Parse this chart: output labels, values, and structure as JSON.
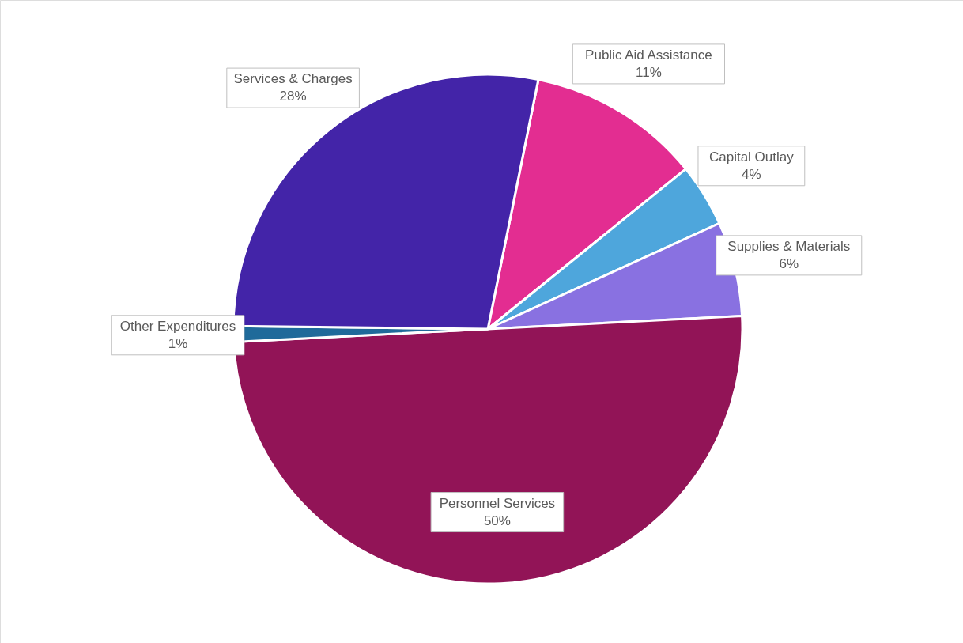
{
  "chart_data": {
    "type": "pie",
    "categories": [
      "Public Aid Assistance",
      "Capital Outlay",
      "Supplies & Materials",
      "Personnel Services",
      "Other Expenditures",
      "Services & Charges"
    ],
    "values": [
      11,
      4,
      6,
      50,
      1,
      28
    ],
    "colors": [
      "#e32d91",
      "#4ea6dc",
      "#8971e1",
      "#921457",
      "#1f6a9a",
      "#4324a8"
    ],
    "value_labels": [
      "11%",
      "4%",
      "6%",
      "50%",
      "1%",
      "28%"
    ]
  }
}
